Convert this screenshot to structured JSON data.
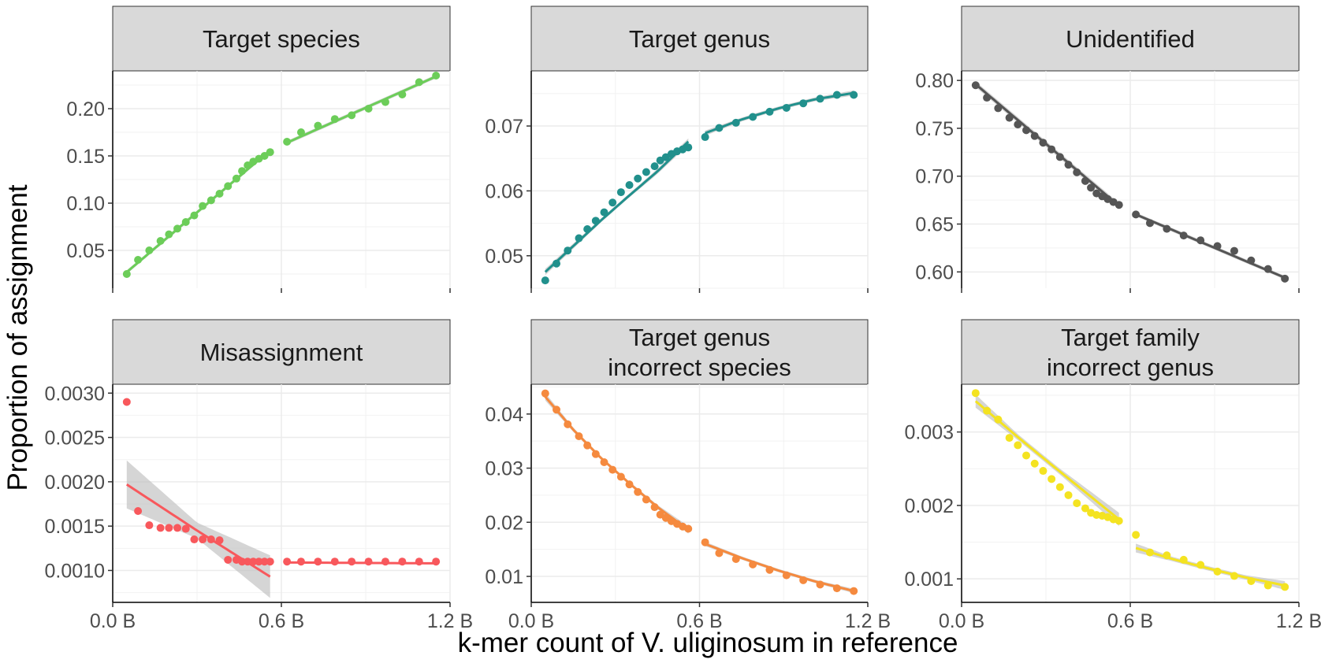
{
  "figure": {
    "xlabel": "k-mer count of V. uliginosum in reference",
    "ylabel": "Proportion of assignment"
  },
  "chart_data": [
    {
      "type": "scatter",
      "title": "Target species",
      "color": "#6ccd59",
      "xlim": [
        0.0,
        1.2
      ],
      "ylim": [
        0.01,
        0.24
      ],
      "x_ticks": [
        "0.0 B",
        "0.6 B",
        "1.2 B"
      ],
      "y_ticks": [
        "0.05",
        "0.10",
        "0.15",
        "0.20"
      ],
      "y_tick_values": [
        0.05,
        0.1,
        0.15,
        0.2
      ],
      "series": [
        {
          "x": [
            0.05,
            0.09,
            0.13,
            0.17,
            0.2,
            0.23,
            0.26,
            0.29,
            0.32,
            0.35,
            0.38,
            0.41,
            0.44,
            0.46,
            0.48,
            0.5,
            0.52,
            0.54,
            0.56
          ],
          "y": [
            0.025,
            0.04,
            0.05,
            0.06,
            0.067,
            0.073,
            0.08,
            0.087,
            0.097,
            0.103,
            0.11,
            0.118,
            0.126,
            0.134,
            0.14,
            0.144,
            0.147,
            0.15,
            0.154
          ]
        },
        {
          "x": [
            0.62,
            0.67,
            0.73,
            0.79,
            0.85,
            0.91,
            0.97,
            1.03,
            1.09,
            1.15
          ],
          "y": [
            0.165,
            0.175,
            0.182,
            0.189,
            0.193,
            0.2,
            0.207,
            0.215,
            0.228,
            0.235
          ]
        }
      ],
      "fit": [
        {
          "x": [
            0.05,
            0.56
          ],
          "y": [
            0.027,
            0.156
          ],
          "se": [
            0.002,
            0.002
          ]
        },
        {
          "x": [
            0.62,
            1.15
          ],
          "y": [
            0.164,
            0.234
          ],
          "se": [
            0.002,
            0.002
          ]
        }
      ]
    },
    {
      "type": "scatter",
      "title": "Target genus",
      "color": "#21908c",
      "xlim": [
        0.0,
        1.2
      ],
      "ylim": [
        0.045,
        0.0785
      ],
      "x_ticks": [
        "0.0 B",
        "0.6 B",
        "1.2 B"
      ],
      "y_ticks": [
        "0.05",
        "0.06",
        "0.07"
      ],
      "y_tick_values": [
        0.05,
        0.06,
        0.07
      ],
      "series": [
        {
          "x": [
            0.05,
            0.09,
            0.13,
            0.17,
            0.2,
            0.23,
            0.26,
            0.29,
            0.32,
            0.35,
            0.38,
            0.41,
            0.44,
            0.46,
            0.48,
            0.5,
            0.52,
            0.54,
            0.56
          ],
          "y": [
            0.0462,
            0.0488,
            0.0508,
            0.0527,
            0.0541,
            0.0554,
            0.0567,
            0.0582,
            0.0598,
            0.0609,
            0.0619,
            0.0629,
            0.0638,
            0.0647,
            0.0652,
            0.0657,
            0.0661,
            0.0664,
            0.0667
          ]
        },
        {
          "x": [
            0.62,
            0.67,
            0.73,
            0.79,
            0.85,
            0.91,
            0.97,
            1.03,
            1.09,
            1.15
          ],
          "y": [
            0.0683,
            0.0697,
            0.0705,
            0.0714,
            0.0722,
            0.0728,
            0.0735,
            0.0742,
            0.0748,
            0.0748
          ]
        }
      ],
      "fit": [
        {
          "x": [
            0.05,
            0.15,
            0.25,
            0.35,
            0.45,
            0.56
          ],
          "y": [
            0.0475,
            0.0515,
            0.0555,
            0.0593,
            0.063,
            0.0676
          ],
          "se": [
            0.0005,
            0.0004,
            0.0003,
            0.0003,
            0.0004,
            0.0005
          ]
        },
        {
          "x": [
            0.62,
            0.75,
            0.88,
            1.01,
            1.15
          ],
          "y": [
            0.0689,
            0.071,
            0.0727,
            0.0741,
            0.0751
          ],
          "se": [
            0.0004,
            0.0003,
            0.0003,
            0.0003,
            0.0004
          ]
        }
      ]
    },
    {
      "type": "scatter",
      "title": "Unidentified",
      "color": "#555555",
      "xlim": [
        0.0,
        1.2
      ],
      "ylim": [
        0.583,
        0.81
      ],
      "x_ticks": [
        "0.0 B",
        "0.6 B",
        "1.2 B"
      ],
      "y_ticks": [
        "0.60",
        "0.65",
        "0.70",
        "0.75",
        "0.80"
      ],
      "y_tick_values": [
        0.6,
        0.65,
        0.7,
        0.75,
        0.8
      ],
      "series": [
        {
          "x": [
            0.05,
            0.09,
            0.13,
            0.17,
            0.2,
            0.23,
            0.26,
            0.29,
            0.32,
            0.35,
            0.38,
            0.41,
            0.44,
            0.46,
            0.48,
            0.5,
            0.52,
            0.54,
            0.56
          ],
          "y": [
            0.795,
            0.782,
            0.771,
            0.761,
            0.754,
            0.748,
            0.742,
            0.735,
            0.728,
            0.72,
            0.712,
            0.704,
            0.695,
            0.688,
            0.682,
            0.679,
            0.676,
            0.673,
            0.67
          ]
        },
        {
          "x": [
            0.62,
            0.67,
            0.73,
            0.79,
            0.85,
            0.91,
            0.97,
            1.03,
            1.09,
            1.15
          ],
          "y": [
            0.66,
            0.651,
            0.645,
            0.638,
            0.633,
            0.627,
            0.622,
            0.612,
            0.603,
            0.593
          ]
        }
      ],
      "fit": [
        {
          "x": [
            0.05,
            0.56
          ],
          "y": [
            0.796,
            0.669
          ],
          "se": [
            0.003,
            0.003
          ]
        },
        {
          "x": [
            0.62,
            1.15
          ],
          "y": [
            0.66,
            0.594
          ],
          "se": [
            0.002,
            0.002
          ]
        }
      ]
    },
    {
      "type": "scatter",
      "title": "Misassignment",
      "color": "#f8585c",
      "xlim": [
        0.0,
        1.2
      ],
      "ylim": [
        0.00064,
        0.0031
      ],
      "x_ticks": [
        "0.0 B",
        "0.6 B",
        "1.2 B"
      ],
      "y_ticks": [
        "0.0010",
        "0.0015",
        "0.0020",
        "0.0025",
        "0.0030"
      ],
      "y_tick_values": [
        0.001,
        0.0015,
        0.002,
        0.0025,
        0.003
      ],
      "series": [
        {
          "x": [
            0.05,
            0.09,
            0.13,
            0.17,
            0.2,
            0.23,
            0.26,
            0.29,
            0.32,
            0.35,
            0.38,
            0.41,
            0.44,
            0.46,
            0.48,
            0.5,
            0.52,
            0.54,
            0.56
          ],
          "y": [
            0.0029,
            0.00167,
            0.00151,
            0.00148,
            0.00148,
            0.00148,
            0.00147,
            0.00135,
            0.00135,
            0.00135,
            0.00134,
            0.00112,
            0.00112,
            0.0011,
            0.0011,
            0.0011,
            0.0011,
            0.0011,
            0.0011
          ]
        },
        {
          "x": [
            0.62,
            0.67,
            0.73,
            0.79,
            0.85,
            0.91,
            0.97,
            1.03,
            1.09,
            1.15
          ],
          "y": [
            0.0011,
            0.0011,
            0.0011,
            0.0011,
            0.0011,
            0.0011,
            0.0011,
            0.0011,
            0.0011,
            0.0011
          ]
        }
      ],
      "fit": [
        {
          "x": [
            0.05,
            0.3,
            0.56
          ],
          "y": [
            0.00197,
            0.00145,
            0.00093
          ],
          "se": [
            0.00027,
            9e-05,
            0.00024
          ]
        },
        {
          "x": [
            0.62,
            1.15
          ],
          "y": [
            0.00109,
            0.00108
          ],
          "se": [
            1e-05,
            1e-05
          ]
        }
      ]
    },
    {
      "type": "scatter",
      "title": "Target genus\nincorrect species",
      "color": "#f58a3f",
      "xlim": [
        0.0,
        1.2
      ],
      "ylim": [
        0.0052,
        0.0455
      ],
      "x_ticks": [
        "0.0 B",
        "0.6 B",
        "1.2 B"
      ],
      "y_ticks": [
        "0.01",
        "0.02",
        "0.03",
        "0.04"
      ],
      "y_tick_values": [
        0.01,
        0.02,
        0.03,
        0.04
      ],
      "series": [
        {
          "x": [
            0.05,
            0.09,
            0.13,
            0.17,
            0.2,
            0.23,
            0.26,
            0.29,
            0.32,
            0.35,
            0.38,
            0.41,
            0.44,
            0.46,
            0.48,
            0.5,
            0.52,
            0.54,
            0.56
          ],
          "y": [
            0.0438,
            0.0408,
            0.0381,
            0.0359,
            0.0342,
            0.0326,
            0.0311,
            0.0297,
            0.0284,
            0.027,
            0.0256,
            0.0242,
            0.0228,
            0.0214,
            0.0208,
            0.0202,
            0.0197,
            0.0192,
            0.0188
          ]
        },
        {
          "x": [
            0.62,
            0.67,
            0.73,
            0.79,
            0.85,
            0.91,
            0.97,
            1.03,
            1.09,
            1.15
          ],
          "y": [
            0.0163,
            0.0143,
            0.0132,
            0.0122,
            0.0112,
            0.0102,
            0.0093,
            0.0085,
            0.0078,
            0.0073
          ]
        }
      ],
      "fit": [
        {
          "x": [
            0.05,
            0.15,
            0.25,
            0.35,
            0.45,
            0.56
          ],
          "y": [
            0.0432,
            0.0371,
            0.0318,
            0.0272,
            0.0228,
            0.0186
          ],
          "se": [
            0.0007,
            0.0004,
            0.0003,
            0.0003,
            0.0004,
            0.0007
          ]
        },
        {
          "x": [
            0.62,
            0.75,
            0.88,
            1.01,
            1.15
          ],
          "y": [
            0.016,
            0.0134,
            0.0111,
            0.0091,
            0.0073
          ],
          "se": [
            0.0004,
            0.0003,
            0.0003,
            0.0003,
            0.0004
          ]
        }
      ]
    },
    {
      "type": "scatter",
      "title": "Target family\nincorrect genus",
      "color": "#f4e321",
      "xlim": [
        0.0,
        1.2
      ],
      "ylim": [
        0.00068,
        0.00365
      ],
      "x_ticks": [
        "0.0 B",
        "0.6 B",
        "1.2 B"
      ],
      "y_ticks": [
        "0.001",
        "0.002",
        "0.003"
      ],
      "y_tick_values": [
        0.001,
        0.002,
        0.003
      ],
      "series": [
        {
          "x": [
            0.05,
            0.09,
            0.13,
            0.17,
            0.2,
            0.23,
            0.26,
            0.29,
            0.32,
            0.35,
            0.38,
            0.41,
            0.44,
            0.46,
            0.48,
            0.5,
            0.52,
            0.54,
            0.56
          ],
          "y": [
            0.00353,
            0.00329,
            0.00317,
            0.00292,
            0.00282,
            0.00268,
            0.00257,
            0.00247,
            0.00236,
            0.00225,
            0.00214,
            0.00203,
            0.00196,
            0.0019,
            0.00187,
            0.00186,
            0.00184,
            0.00181,
            0.00179
          ]
        },
        {
          "x": [
            0.62,
            0.67,
            0.73,
            0.79,
            0.85,
            0.91,
            0.97,
            1.03,
            1.09,
            1.15
          ],
          "y": [
            0.0016,
            0.00136,
            0.00132,
            0.00126,
            0.00119,
            0.0011,
            0.00104,
            0.00097,
            0.00091,
            0.00089
          ]
        }
      ],
      "fit": [
        {
          "x": [
            0.05,
            0.2,
            0.35,
            0.56
          ],
          "y": [
            0.00342,
            0.00293,
            0.00246,
            0.00181
          ],
          "se": [
            9e-05,
            4e-05,
            4e-05,
            9e-05
          ]
        },
        {
          "x": [
            0.62,
            0.75,
            0.88,
            1.01,
            1.15
          ],
          "y": [
            0.00142,
            0.00127,
            0.00114,
            0.00102,
            0.00091
          ],
          "se": [
            6e-05,
            3e-05,
            3e-05,
            3e-05,
            6e-05
          ]
        }
      ]
    }
  ]
}
